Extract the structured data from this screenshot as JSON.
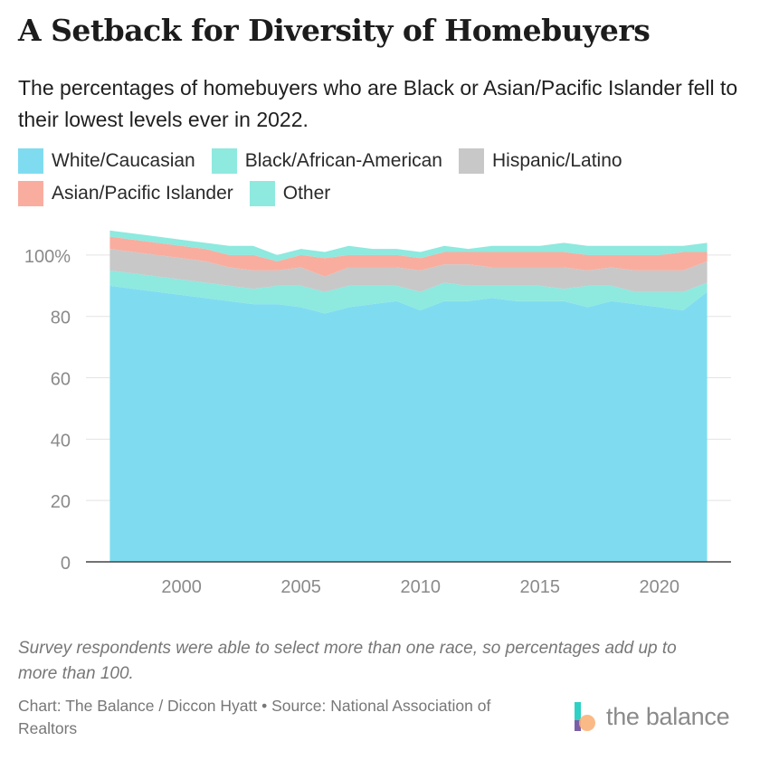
{
  "header": {
    "title": "A Setback for Diversity of Homebuyers",
    "subtitle": "The percentages of homebuyers who are Black or Asian/Pacific Islander fell to their lowest levels ever in 2022."
  },
  "footer": {
    "note": "Survey respondents were able to select more than one race, so percentages add up to more than 100.",
    "credit": "Chart: The Balance / Diccon Hyatt • Source: National Association of Realtors",
    "brand": "the balance"
  },
  "colors": {
    "white": "#7fdcf0",
    "black": "#8ee9df",
    "hispanic": "#c8c8c8",
    "asian": "#f9ad9f",
    "other": "#8ee9df",
    "axis": "#444444",
    "grid": "#e3e3e3",
    "tick_text": "#8a8a8a"
  },
  "chart_data": {
    "type": "area",
    "stacked": true,
    "x": [
      1997,
      1998,
      1999,
      2000,
      2001,
      2002,
      2003,
      2004,
      2005,
      2006,
      2007,
      2008,
      2009,
      2010,
      2011,
      2012,
      2013,
      2014,
      2015,
      2016,
      2017,
      2018,
      2019,
      2020,
      2021,
      2022
    ],
    "series": [
      {
        "key": "white",
        "name": "White/Caucasian",
        "values": [
          90,
          89,
          88,
          87,
          86,
          85,
          84,
          84,
          83,
          81,
          83,
          84,
          85,
          82,
          85,
          85,
          86,
          85,
          85,
          85,
          83,
          85,
          84,
          83,
          82,
          88
        ]
      },
      {
        "key": "black",
        "name": "Black/African-American",
        "values": [
          5,
          5,
          5,
          5,
          5,
          5,
          5,
          6,
          7,
          7,
          7,
          6,
          5,
          6,
          6,
          5,
          4,
          5,
          5,
          4,
          7,
          5,
          4,
          5,
          6,
          3
        ]
      },
      {
        "key": "hispanic",
        "name": "Hispanic/Latino",
        "values": [
          7,
          7,
          7,
          7,
          7,
          6,
          6,
          5,
          6,
          5,
          6,
          6,
          6,
          7,
          6,
          7,
          6,
          6,
          6,
          7,
          5,
          6,
          7,
          7,
          7,
          7
        ]
      },
      {
        "key": "asian",
        "name": "Asian/Pacific Islander",
        "values": [
          4,
          4,
          4,
          4,
          4,
          4,
          5,
          3,
          4,
          6,
          4,
          4,
          4,
          4,
          4,
          4,
          5,
          5,
          5,
          5,
          5,
          4,
          5,
          5,
          6,
          3
        ]
      },
      {
        "key": "other",
        "name": "Other",
        "values": [
          2,
          2,
          2,
          2,
          2,
          3,
          3,
          2,
          2,
          2,
          3,
          2,
          2,
          2,
          2,
          1,
          2,
          2,
          2,
          3,
          3,
          3,
          3,
          3,
          2,
          3
        ]
      }
    ],
    "legend": [
      "White/Caucasian",
      "Black/African-American",
      "Hispanic/Latino",
      "Asian/Pacific Islander",
      "Other"
    ],
    "x_ticks": [
      2000,
      2005,
      2010,
      2015,
      2020
    ],
    "y_ticks": [
      0,
      20,
      40,
      60,
      80,
      100
    ],
    "y_tick_labels": [
      "0",
      "20",
      "40",
      "60",
      "80",
      "100%"
    ],
    "xlim": [
      1996,
      2023
    ],
    "ylim": [
      0,
      110
    ],
    "grid": true,
    "legend_position": "top"
  }
}
